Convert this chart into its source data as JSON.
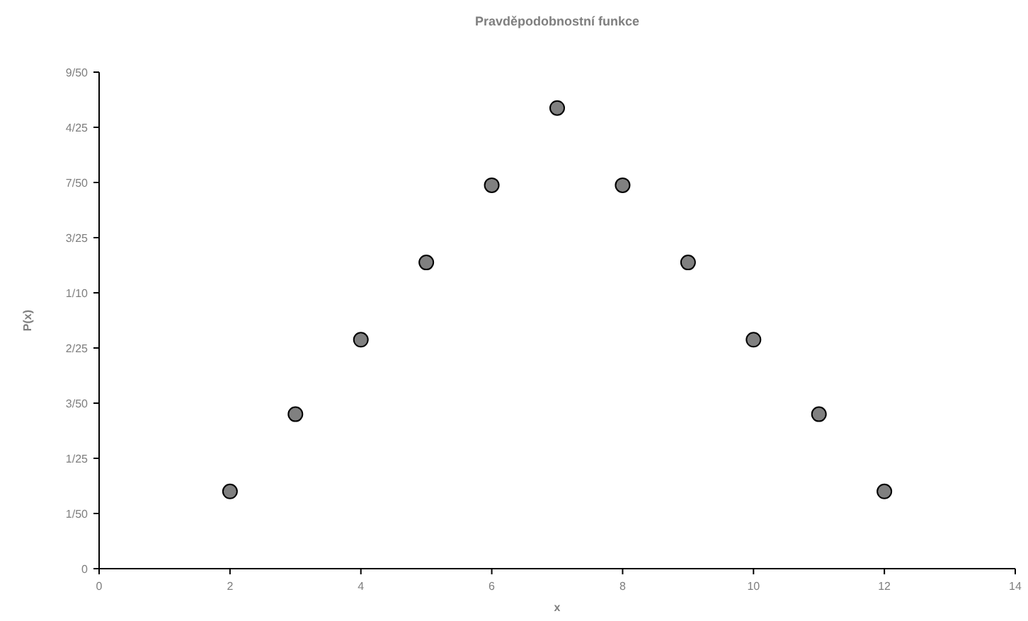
{
  "chart_data": {
    "type": "scatter",
    "title": "Pravděpodobnostní funkce",
    "xlabel": "x",
    "ylabel": "P(x)",
    "x": [
      2,
      3,
      4,
      5,
      6,
      7,
      8,
      9,
      10,
      11,
      12
    ],
    "series": [
      {
        "color": "#808080",
        "values": [
          0.028,
          0.056,
          0.083,
          0.111,
          0.139,
          0.167,
          0.139,
          0.111,
          0.083,
          0.056,
          0.028
        ]
      }
    ],
    "xlim": [
      0,
      14
    ],
    "xticks": [
      0,
      2,
      4,
      6,
      8,
      10,
      12,
      14
    ],
    "ylim": [
      0,
      0.18
    ],
    "yticks": [
      0,
      {
        "value": 0.02,
        "label": "1/50"
      },
      {
        "value": 0.04,
        "label": "1/25"
      },
      {
        "value": 0.06,
        "label": "3/50"
      },
      {
        "value": 0.08,
        "label": "2/25"
      },
      {
        "value": 0.1,
        "label": "1/10"
      },
      {
        "value": 0.12,
        "label": "3/25"
      },
      {
        "value": 0.14,
        "label": "7/50"
      },
      {
        "value": 0.16,
        "label": "4/25"
      },
      {
        "value": 0.18,
        "label": "9/50"
      }
    ],
    "grid": false,
    "marker": "circle"
  }
}
